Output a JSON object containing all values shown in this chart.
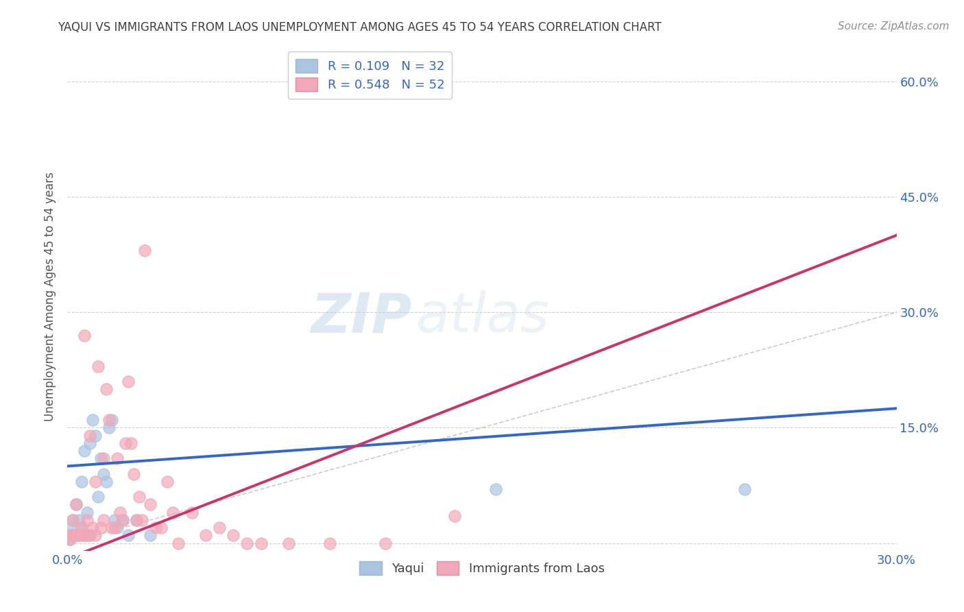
{
  "title": "YAQUI VS IMMIGRANTS FROM LAOS UNEMPLOYMENT AMONG AGES 45 TO 54 YEARS CORRELATION CHART",
  "source": "Source: ZipAtlas.com",
  "ylabel": "Unemployment Among Ages 45 to 54 years",
  "xlim": [
    0.0,
    0.3
  ],
  "ylim": [
    -0.01,
    0.65
  ],
  "xticks": [
    0.0,
    0.05,
    0.1,
    0.15,
    0.2,
    0.25,
    0.3
  ],
  "yticks": [
    0.0,
    0.15,
    0.3,
    0.45,
    0.6
  ],
  "right_ytick_labels": [
    "",
    "15.0%",
    "30.0%",
    "45.0%",
    "60.0%"
  ],
  "xtick_labels": [
    "0.0%",
    "",
    "",
    "",
    "",
    "",
    "30.0%"
  ],
  "yaqui_R": "0.109",
  "yaqui_N": "32",
  "laos_R": "0.548",
  "laos_N": "52",
  "yaqui_color": "#aac4e2",
  "laos_color": "#f2a8b8",
  "yaqui_line_color": "#3366cc",
  "laos_line_color": "#cc3366",
  "diagonal_color": "#c0c0c0",
  "tick_color": "#3366cc",
  "background_color": "#ffffff",
  "watermark_zip": "ZIP",
  "watermark_atlas": "atlas",
  "yaqui_x": [
    0.001,
    0.001,
    0.002,
    0.002,
    0.003,
    0.003,
    0.004,
    0.004,
    0.005,
    0.005,
    0.006,
    0.006,
    0.007,
    0.007,
    0.008,
    0.008,
    0.009,
    0.01,
    0.011,
    0.012,
    0.013,
    0.014,
    0.015,
    0.016,
    0.017,
    0.018,
    0.02,
    0.022,
    0.025,
    0.03,
    0.155,
    0.245
  ],
  "yaqui_y": [
    0.005,
    0.02,
    0.01,
    0.03,
    0.01,
    0.05,
    0.01,
    0.03,
    0.02,
    0.08,
    0.01,
    0.12,
    0.01,
    0.04,
    0.01,
    0.13,
    0.16,
    0.14,
    0.06,
    0.11,
    0.09,
    0.08,
    0.15,
    0.16,
    0.03,
    0.02,
    0.03,
    0.01,
    0.03,
    0.01,
    0.07,
    0.07
  ],
  "laos_x": [
    0.001,
    0.001,
    0.002,
    0.002,
    0.003,
    0.003,
    0.004,
    0.005,
    0.005,
    0.006,
    0.006,
    0.007,
    0.008,
    0.008,
    0.009,
    0.01,
    0.01,
    0.011,
    0.012,
    0.013,
    0.013,
    0.014,
    0.015,
    0.016,
    0.017,
    0.018,
    0.019,
    0.02,
    0.021,
    0.022,
    0.023,
    0.024,
    0.025,
    0.026,
    0.027,
    0.028,
    0.03,
    0.032,
    0.034,
    0.036,
    0.038,
    0.04,
    0.045,
    0.05,
    0.055,
    0.06,
    0.065,
    0.07,
    0.08,
    0.095,
    0.115,
    0.14
  ],
  "laos_y": [
    0.005,
    0.01,
    0.01,
    0.03,
    0.01,
    0.05,
    0.01,
    0.01,
    0.02,
    0.01,
    0.27,
    0.03,
    0.01,
    0.14,
    0.02,
    0.01,
    0.08,
    0.23,
    0.02,
    0.03,
    0.11,
    0.2,
    0.16,
    0.02,
    0.02,
    0.11,
    0.04,
    0.03,
    0.13,
    0.21,
    0.13,
    0.09,
    0.03,
    0.06,
    0.03,
    0.38,
    0.05,
    0.02,
    0.02,
    0.08,
    0.04,
    0.0,
    0.04,
    0.01,
    0.02,
    0.01,
    0.0,
    0.0,
    0.0,
    0.0,
    0.0,
    0.035
  ],
  "blue_line_x": [
    0.0,
    0.3
  ],
  "blue_line_y": [
    0.1,
    0.175
  ],
  "pink_line_x": [
    0.0,
    0.3
  ],
  "pink_line_y": [
    -0.02,
    0.4
  ]
}
